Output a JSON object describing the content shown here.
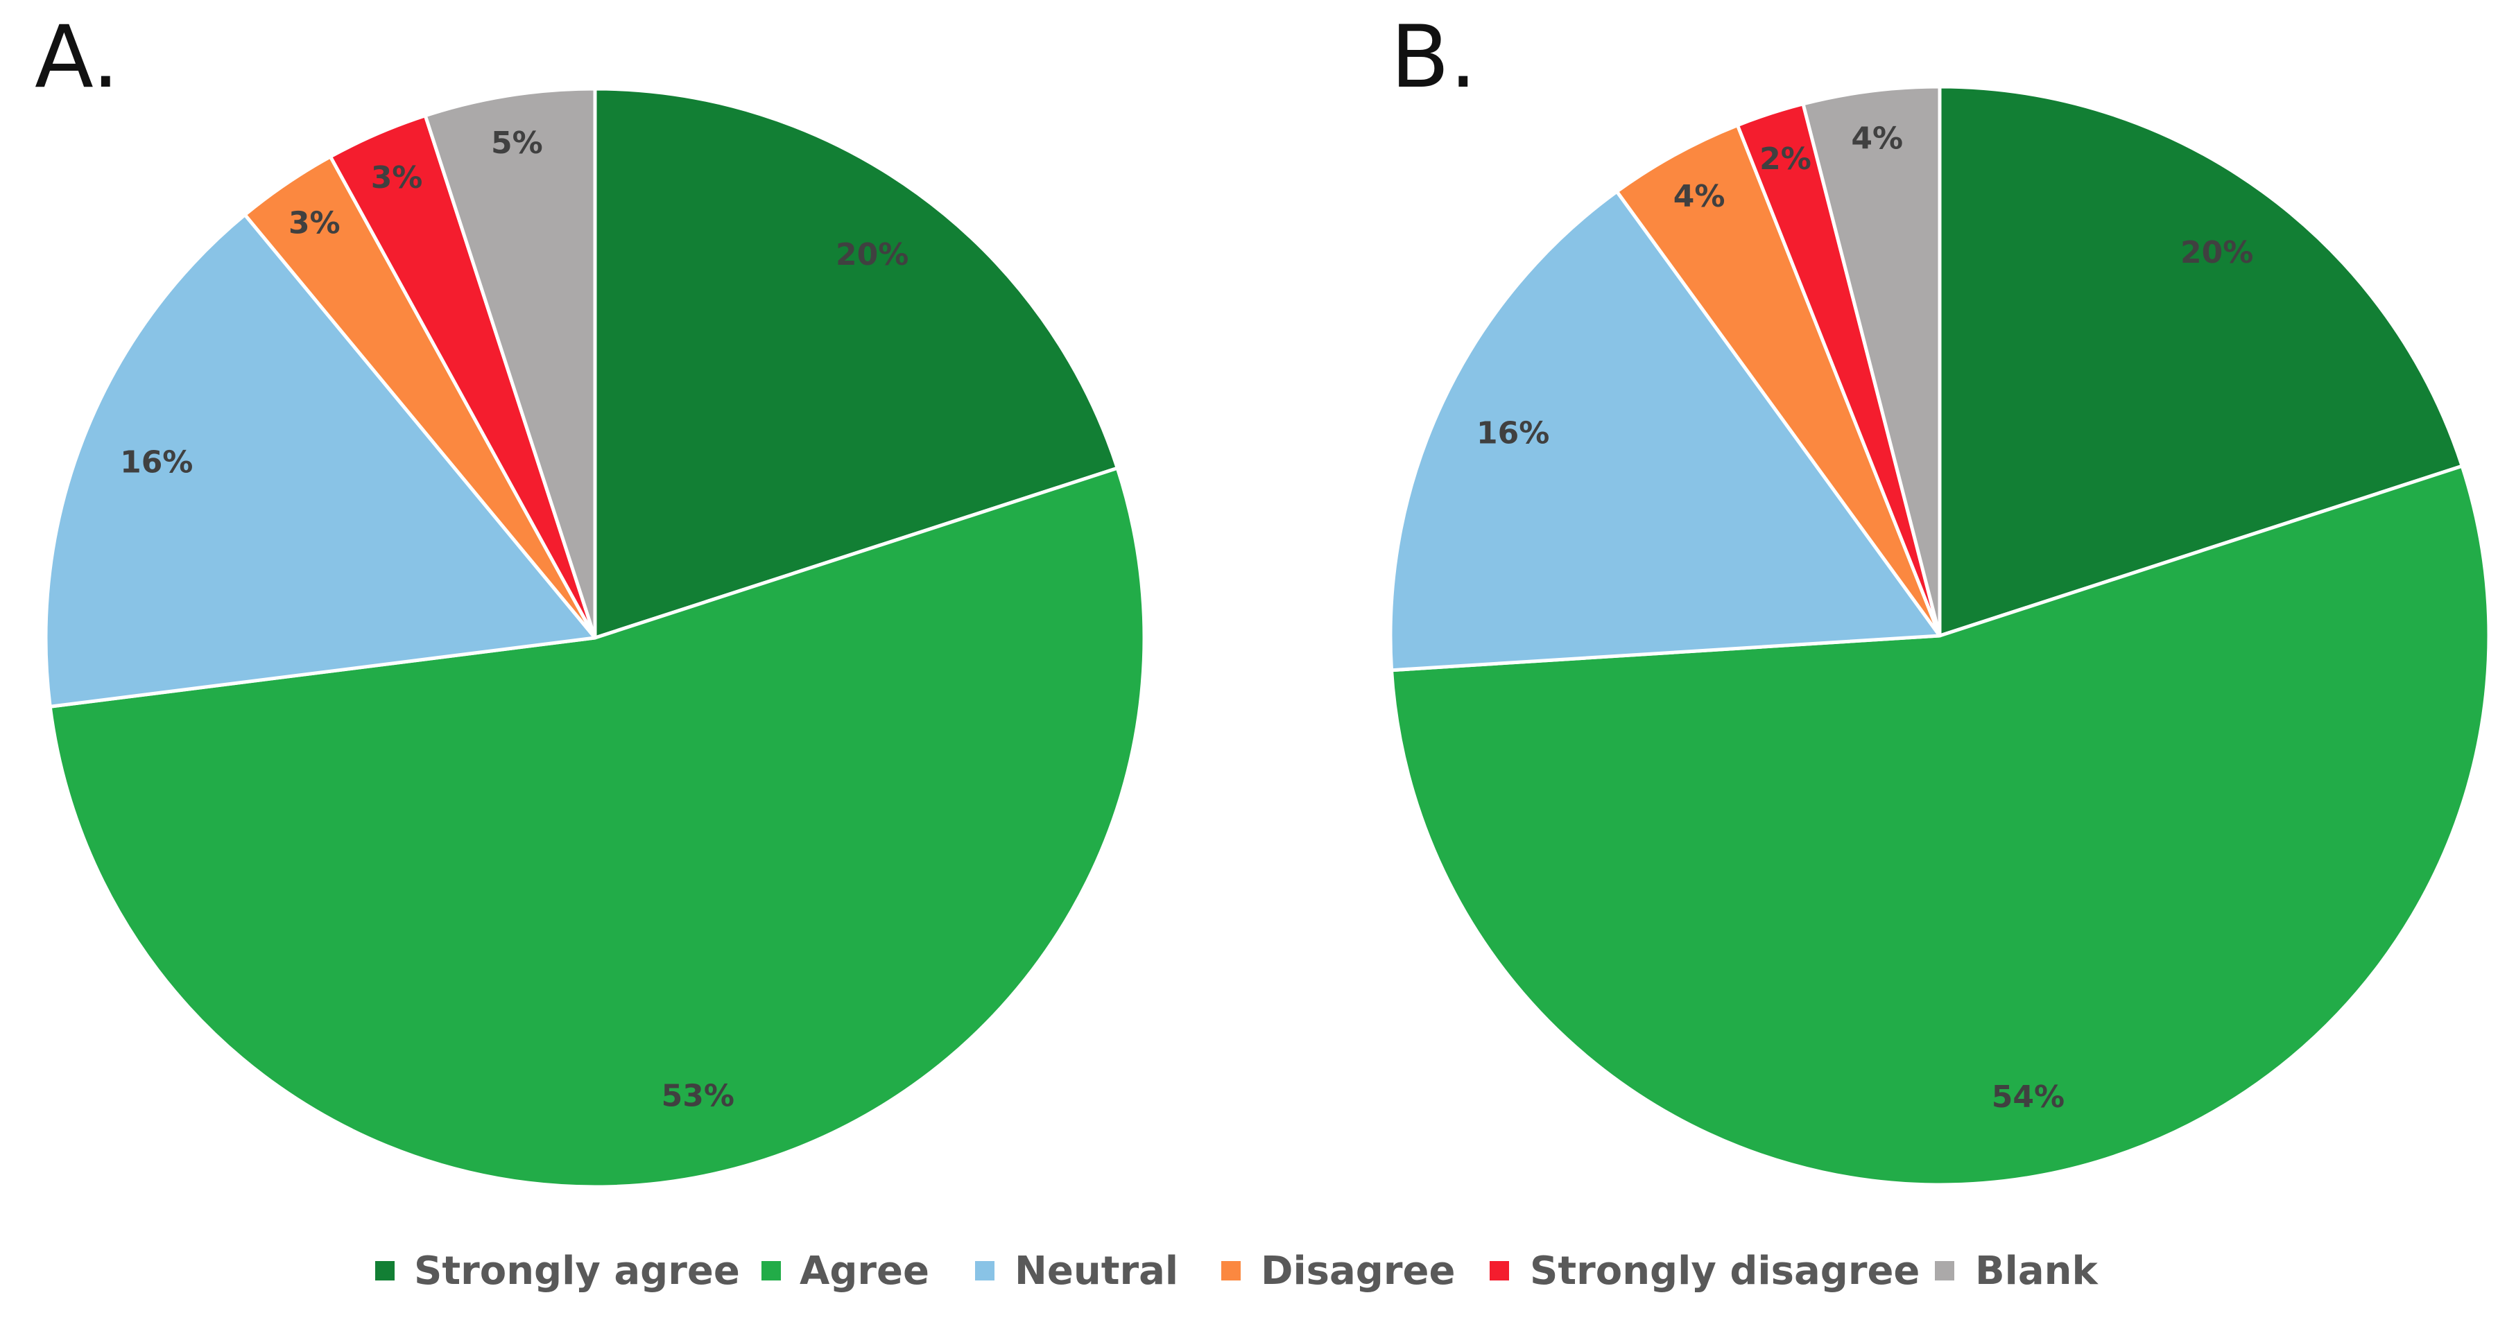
{
  "chart_data": [
    {
      "type": "pie",
      "panel": "A.",
      "categories": [
        "Strongly agree",
        "Agree",
        "Neutral",
        "Disagree",
        "Strongly disagree",
        "Blank"
      ],
      "values": [
        20,
        53,
        16,
        3,
        3,
        5
      ],
      "labels": [
        "20%",
        "53%",
        "16%",
        "3%",
        "3%",
        "5%"
      ]
    },
    {
      "type": "pie",
      "panel": "B.",
      "categories": [
        "Strongly agree",
        "Agree",
        "Neutral",
        "Disagree",
        "Strongly disagree",
        "Blank"
      ],
      "values": [
        20,
        54,
        16,
        4,
        2,
        4
      ],
      "labels": [
        "20%",
        "54%",
        "16%",
        "4%",
        "2%",
        "4%"
      ]
    }
  ],
  "legend": {
    "position": "bottom",
    "items": [
      {
        "label": "Strongly agree",
        "color": "#127f34"
      },
      {
        "label": "Agree",
        "color": "#22ac48"
      },
      {
        "label": "Neutral",
        "color": "#89c3e6"
      },
      {
        "label": "Disagree",
        "color": "#fb8840"
      },
      {
        "label": "Strongly disagree",
        "color": "#f41d2e"
      },
      {
        "label": "Blank",
        "color": "#aba9a9"
      }
    ]
  }
}
